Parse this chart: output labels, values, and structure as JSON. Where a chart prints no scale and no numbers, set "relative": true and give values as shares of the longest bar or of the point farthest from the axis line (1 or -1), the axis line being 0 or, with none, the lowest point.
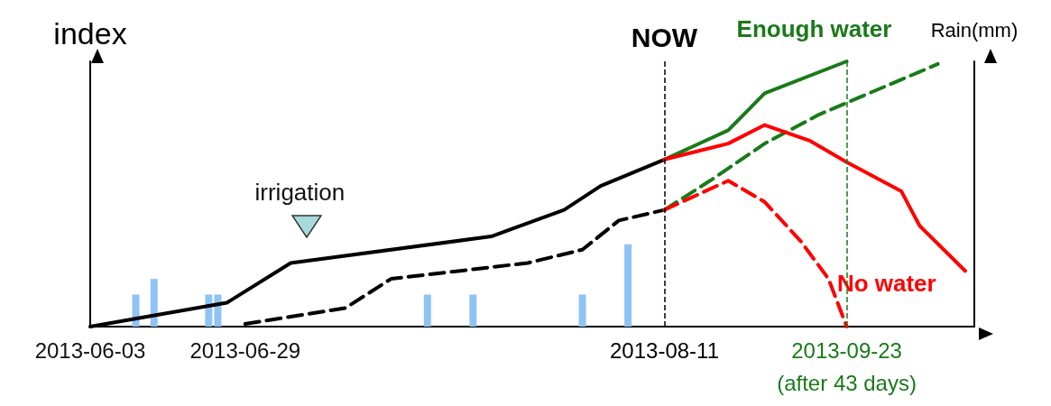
{
  "chart_data": {
    "type": "line",
    "relative": true,
    "ylabel": "index",
    "y2label": "Rain(mm)",
    "marker": "none",
    "categories": [
      "2013-06-03",
      null,
      null,
      null,
      null,
      null,
      null,
      null,
      null,
      null,
      null,
      null,
      null,
      null,
      null,
      null,
      null,
      "2013-06-29",
      null,
      null,
      null,
      null,
      null,
      null,
      null,
      null,
      null,
      null,
      null,
      null,
      null,
      null,
      null,
      null,
      null,
      null,
      null,
      null,
      null,
      null,
      null,
      null,
      null,
      null,
      null,
      null,
      null,
      null,
      null,
      null,
      null,
      null,
      null,
      null,
      null,
      null,
      null,
      null,
      null,
      null,
      null,
      null,
      null,
      "2013-08-11",
      null,
      null,
      null,
      null,
      null,
      null,
      null,
      null,
      null,
      null,
      null,
      null,
      null,
      null,
      null,
      null,
      null,
      null,
      null,
      "2013-09-23",
      null,
      null,
      null,
      null,
      null,
      null,
      null,
      null,
      null,
      null,
      null,
      null,
      null,
      null
    ],
    "series": [
      {
        "type": "bar",
        "axis": "y2",
        "color": "#8fc3f5",
        "values": [
          null,
          null,
          null,
          null,
          null,
          0.39,
          null,
          0.58,
          null,
          null,
          null,
          null,
          null,
          0.39,
          0.39,
          null,
          null,
          null,
          null,
          null,
          null,
          null,
          null,
          null,
          null,
          null,
          null,
          null,
          null,
          null,
          null,
          null,
          null,
          null,
          null,
          null,
          null,
          0.39,
          null,
          null,
          null,
          null,
          0.39,
          null,
          null,
          null,
          null,
          null,
          null,
          null,
          null,
          null,
          null,
          null,
          0.39,
          null,
          null,
          null,
          null,
          1,
          null,
          null,
          null,
          null,
          null,
          null,
          null,
          null,
          null,
          null,
          null,
          null,
          null,
          null,
          null,
          null,
          null,
          null,
          null,
          null,
          null,
          null,
          null,
          null,
          null,
          null,
          null,
          null,
          null,
          null,
          null,
          null,
          null,
          null,
          null,
          null,
          null,
          null
        ]
      },
      {
        "color": "#000000",
        "line_style": "solid",
        "values": [
          0,
          null,
          null,
          null,
          null,
          null,
          null,
          null,
          null,
          null,
          null,
          null,
          null,
          null,
          null,
          0.09,
          null,
          null,
          null,
          null,
          null,
          null,
          0.24,
          null,
          null,
          null,
          null,
          null,
          null,
          null,
          null,
          null,
          null,
          null,
          null,
          null,
          null,
          null,
          null,
          null,
          null,
          null,
          null,
          null,
          0.34,
          null,
          null,
          null,
          null,
          null,
          null,
          null,
          0.44,
          null,
          null,
          null,
          0.53,
          null,
          null,
          null,
          null,
          null,
          null,
          0.63,
          null,
          null,
          null,
          null,
          null,
          null,
          null,
          null,
          null,
          null,
          null,
          null,
          null,
          null,
          null,
          null,
          null,
          null,
          null,
          null,
          null,
          null,
          null,
          null,
          null,
          null,
          null,
          null,
          null,
          null,
          null,
          null,
          null,
          null
        ]
      },
      {
        "color": "#000000",
        "line_style": "dashed",
        "values": [
          null,
          null,
          null,
          null,
          null,
          null,
          null,
          null,
          null,
          null,
          null,
          null,
          null,
          null,
          null,
          null,
          null,
          0.01,
          null,
          null,
          null,
          null,
          null,
          null,
          null,
          null,
          null,
          null,
          0.07,
          null,
          null,
          null,
          null,
          0.18,
          null,
          null,
          null,
          null,
          null,
          null,
          null,
          null,
          null,
          null,
          null,
          null,
          null,
          null,
          0.24,
          null,
          null,
          null,
          null,
          null,
          0.29,
          null,
          null,
          null,
          0.4,
          null,
          null,
          null,
          null,
          0.44,
          null,
          null,
          null,
          null,
          null,
          null,
          null,
          null,
          null,
          null,
          null,
          null,
          null,
          null,
          null,
          null,
          null,
          null,
          null,
          null,
          null,
          null,
          null,
          null,
          null,
          null,
          null,
          null,
          null,
          null,
          null,
          null,
          null,
          null
        ]
      },
      {
        "name": "Enough water",
        "color": "#1a7a1a",
        "line_style": "solid",
        "values": [
          null,
          null,
          null,
          null,
          null,
          null,
          null,
          null,
          null,
          null,
          null,
          null,
          null,
          null,
          null,
          null,
          null,
          null,
          null,
          null,
          null,
          null,
          null,
          null,
          null,
          null,
          null,
          null,
          null,
          null,
          null,
          null,
          null,
          null,
          null,
          null,
          null,
          null,
          null,
          null,
          null,
          null,
          null,
          null,
          null,
          null,
          null,
          null,
          null,
          null,
          null,
          null,
          null,
          null,
          null,
          null,
          null,
          null,
          null,
          null,
          null,
          null,
          null,
          0.63,
          null,
          null,
          null,
          null,
          null,
          null,
          0.74,
          null,
          null,
          null,
          0.88,
          null,
          null,
          null,
          null,
          null,
          null,
          null,
          null,
          1,
          null,
          null,
          null,
          null,
          null,
          null,
          null,
          null,
          null,
          null,
          null,
          null,
          null,
          null
        ]
      },
      {
        "color": "#1a7a1a",
        "line_style": "dashed",
        "values": [
          null,
          null,
          null,
          null,
          null,
          null,
          null,
          null,
          null,
          null,
          null,
          null,
          null,
          null,
          null,
          null,
          null,
          null,
          null,
          null,
          null,
          null,
          null,
          null,
          null,
          null,
          null,
          null,
          null,
          null,
          null,
          null,
          null,
          null,
          null,
          null,
          null,
          null,
          null,
          null,
          null,
          null,
          null,
          null,
          null,
          null,
          null,
          null,
          null,
          null,
          null,
          null,
          null,
          null,
          null,
          null,
          null,
          null,
          null,
          null,
          null,
          null,
          null,
          0.44,
          null,
          null,
          null,
          null,
          0.55,
          null,
          null,
          null,
          null,
          null,
          0.69,
          null,
          null,
          null,
          null,
          null,
          0.8,
          null,
          null,
          null,
          null,
          null,
          null,
          null,
          null,
          null,
          null,
          null,
          null,
          0.99,
          null,
          null,
          null,
          null
        ]
      },
      {
        "name": "No water",
        "color": "#ff0000",
        "line_style": "solid",
        "values": [
          null,
          null,
          null,
          null,
          null,
          null,
          null,
          null,
          null,
          null,
          null,
          null,
          null,
          null,
          null,
          null,
          null,
          null,
          null,
          null,
          null,
          null,
          null,
          null,
          null,
          null,
          null,
          null,
          null,
          null,
          null,
          null,
          null,
          null,
          null,
          null,
          null,
          null,
          null,
          null,
          null,
          null,
          null,
          null,
          null,
          null,
          null,
          null,
          null,
          null,
          null,
          null,
          null,
          null,
          null,
          null,
          null,
          null,
          null,
          null,
          null,
          null,
          null,
          0.63,
          null,
          null,
          null,
          null,
          null,
          null,
          0.69,
          null,
          null,
          null,
          0.76,
          null,
          null,
          null,
          null,
          0.7,
          null,
          null,
          null,
          0.62,
          null,
          null,
          null,
          null,
          null,
          0.51,
          null,
          0.38,
          null,
          null,
          null,
          null,
          0.21,
          null
        ]
      },
      {
        "color": "#ff0000",
        "line_style": "dashed",
        "values": [
          null,
          null,
          null,
          null,
          null,
          null,
          null,
          null,
          null,
          null,
          null,
          null,
          null,
          null,
          null,
          null,
          null,
          null,
          null,
          null,
          null,
          null,
          null,
          null,
          null,
          null,
          null,
          null,
          null,
          null,
          null,
          null,
          null,
          null,
          null,
          null,
          null,
          null,
          null,
          null,
          null,
          null,
          null,
          null,
          null,
          null,
          null,
          null,
          null,
          null,
          null,
          null,
          null,
          null,
          null,
          null,
          null,
          null,
          null,
          null,
          null,
          null,
          null,
          0.44,
          null,
          null,
          null,
          null,
          null,
          null,
          0.55,
          null,
          null,
          null,
          0.47,
          null,
          null,
          null,
          0.32,
          null,
          null,
          0.18,
          null,
          0,
          null,
          null,
          null,
          null,
          null,
          null,
          null,
          null,
          null,
          null,
          null,
          null,
          null,
          null
        ]
      }
    ],
    "ref_lines": [
      {
        "axis": "x",
        "value": "2013-08-11",
        "label": "NOW",
        "color": "#000000",
        "line_style": "dashed"
      },
      {
        "axis": "x",
        "value": "2013-09-23",
        "label": null,
        "color": "#1a7a1a",
        "line_style": "dashed"
      }
    ],
    "annotations": [
      "irrigation",
      "(after 43 days)"
    ]
  }
}
